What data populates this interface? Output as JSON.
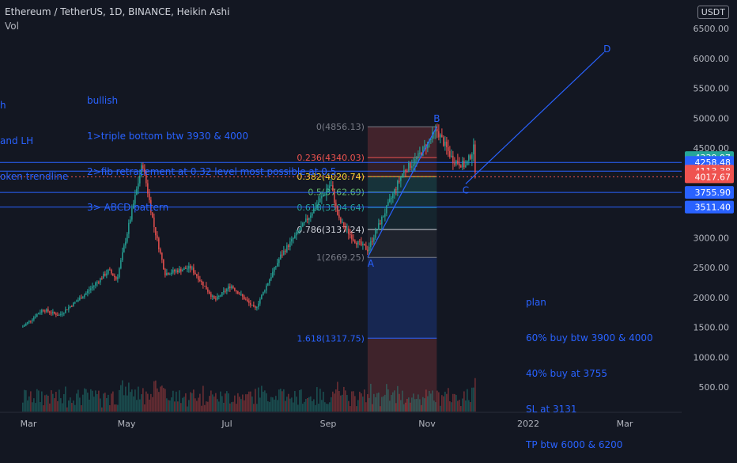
{
  "header": {
    "title": "Ethereum / TetherUS, 1D, BINANCE, Heikin Ashi",
    "indicator": "Vol",
    "currency": "USDT"
  },
  "colors": {
    "background": "#131722",
    "up": "#26a69a",
    "down": "#ef5350",
    "accent": "#2962ff",
    "grid": "#1e222d",
    "axis_text": "#b2b5be"
  },
  "notes": {
    "left": [
      "h",
      "and LH",
      "oken trendline"
    ],
    "bullish": [
      "bullish",
      "1>triple bottom btw 3930 & 4000",
      "2>fib retracement at 0.32 level most possible at 0.5",
      "3> ABCD pattern"
    ],
    "plan": [
      "plan",
      "60% buy btw 3900 & 4000",
      "40% buy at 3755",
      "SL at 3131",
      "TP btw 6000 & 6200"
    ]
  },
  "chart_data": {
    "type": "line",
    "title": "Ethereum / TetherUS, 1D, BINANCE, Heikin Ashi",
    "price_scale": {
      "min": 0,
      "max": 6600,
      "ticks": [
        "500.00",
        "1000.00",
        "1500.00",
        "2000.00",
        "2500.00",
        "3000.00",
        "3500.00",
        "4000.00",
        "4500.00",
        "5000.00",
        "5500.00",
        "6000.00",
        "6500.00"
      ]
    },
    "x_labels": [
      "Mar",
      "May",
      "Jul",
      "Sep",
      "Nov",
      "2022",
      "Mar"
    ],
    "price_path": [
      [
        "2021-02-25",
        1500
      ],
      [
        "2021-03-10",
        1800
      ],
      [
        "2021-03-20",
        1700
      ],
      [
        "2021-04-05",
        2050
      ],
      [
        "2021-04-20",
        2450
      ],
      [
        "2021-04-25",
        2300
      ],
      [
        "2021-05-11",
        4250
      ],
      [
        "2021-05-18",
        3200
      ],
      [
        "2021-05-25",
        2400
      ],
      [
        "2021-06-10",
        2500
      ],
      [
        "2021-06-25",
        1950
      ],
      [
        "2021-07-05",
        2200
      ],
      [
        "2021-07-20",
        1800
      ],
      [
        "2021-08-05",
        2700
      ],
      [
        "2021-08-20",
        3250
      ],
      [
        "2021-09-05",
        3900
      ],
      [
        "2021-09-10",
        3300
      ],
      [
        "2021-09-20",
        2950
      ],
      [
        "2021-09-28",
        2800
      ],
      [
        "2021-10-10",
        3500
      ],
      [
        "2021-10-20",
        4100
      ],
      [
        "2021-10-28",
        4300
      ],
      [
        "2021-11-10",
        4800
      ],
      [
        "2021-11-20",
        4300
      ],
      [
        "2021-11-28",
        4200
      ],
      [
        "2021-12-03",
        4500
      ],
      [
        "2021-12-04",
        4100
      ]
    ],
    "price_labels": [
      {
        "value": 4339.97,
        "label": "4339.97",
        "kind": "up"
      },
      {
        "value": 4258.48,
        "label": "4258.48",
        "kind": "blue"
      },
      {
        "value": 4113.38,
        "label": "4113.38",
        "kind": "down"
      },
      {
        "value": 4017.67,
        "label": "4017.67",
        "kind": "down"
      },
      {
        "value": 3755.9,
        "label": "3755.90",
        "kind": "blue"
      },
      {
        "value": 3511.4,
        "label": "3511.40",
        "kind": "blue"
      }
    ],
    "horizontal_levels": [
      4258.48,
      4113.38,
      3755.9,
      3511.4
    ],
    "dotted_level": 4017.67,
    "fib_levels": [
      {
        "ratio": "0",
        "price": 4856.13,
        "label": "0(4856.13)"
      },
      {
        "ratio": "0.236",
        "price": 4340.03,
        "label": "0.236(4340.03)"
      },
      {
        "ratio": "0.382",
        "price": 4020.74,
        "label": "0.382(4020.74)"
      },
      {
        "ratio": "0.5",
        "price": 3762.69,
        "label": "0.5(3762.69)"
      },
      {
        "ratio": "0.618",
        "price": 3504.64,
        "label": "0.618(3504.64)"
      },
      {
        "ratio": "0.786",
        "price": 3137.24,
        "label": "0.786(3137.24)"
      },
      {
        "ratio": "1",
        "price": 2669.25,
        "label": "1(2669.25)"
      },
      {
        "ratio": "1.618",
        "price": 1317.75,
        "label": "1.618(1317.75)"
      }
    ],
    "fib_range": {
      "start": "2021-09-28",
      "end": "2021-11-10"
    },
    "abcd": [
      {
        "label": "A",
        "date": "2021-09-28",
        "price": 2669.25
      },
      {
        "label": "B",
        "date": "2021-11-10",
        "price": 4856.13
      },
      {
        "label": "C",
        "date": "2021-11-28",
        "price": 3900
      },
      {
        "label": "D",
        "date": "2022-02-22",
        "price": 6100
      }
    ],
    "volume_axis": [
      "500.00"
    ]
  }
}
